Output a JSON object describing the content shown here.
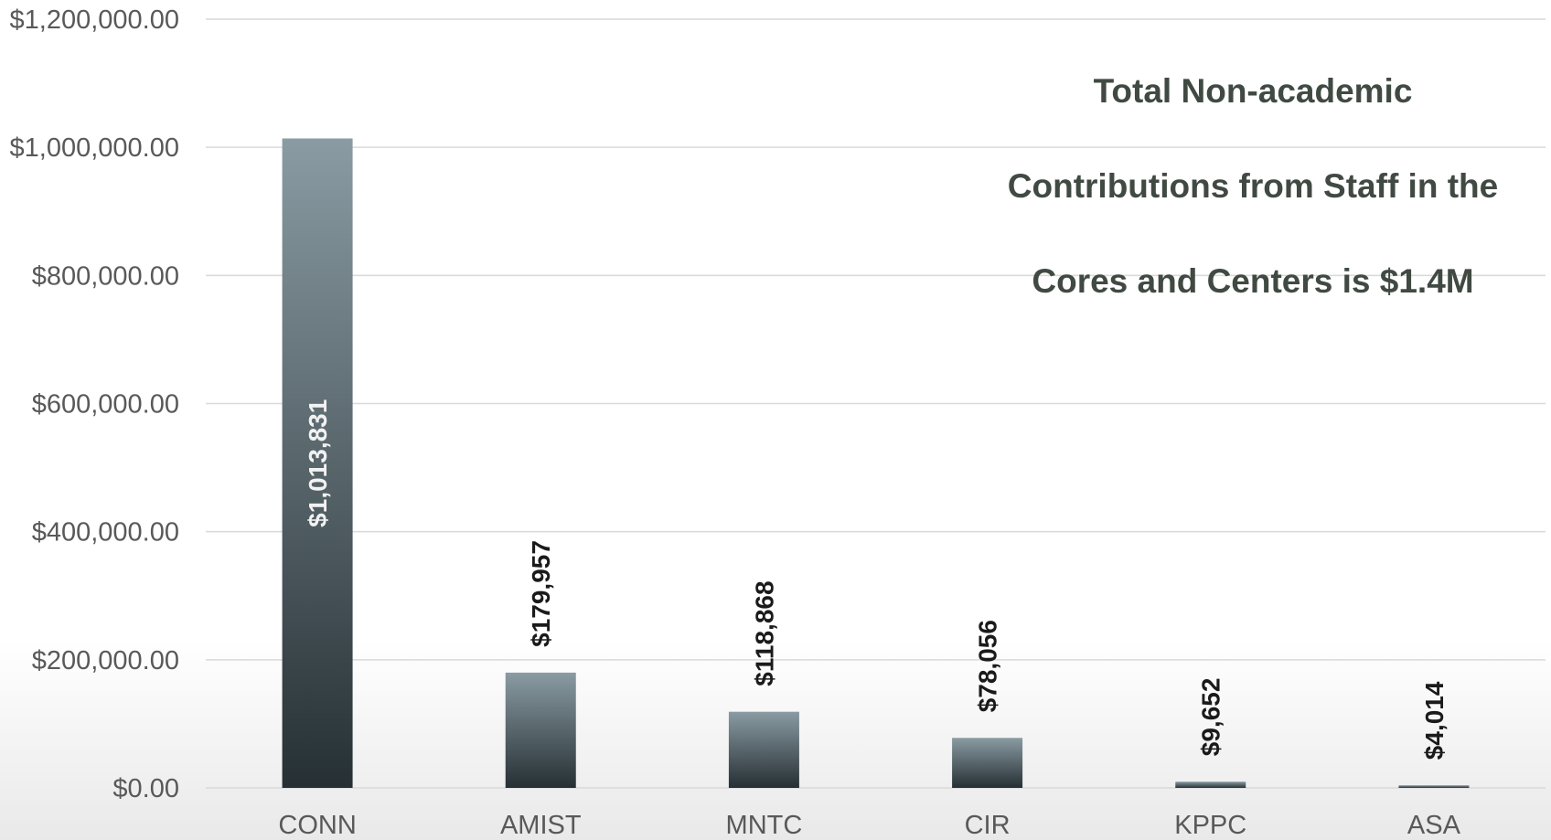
{
  "chart_data": {
    "type": "bar",
    "title": "Total Non-academic Contributions from Staff in the Cores and Centers is $1.4M",
    "title_lines": [
      "Total Non-academic",
      "Contributions from Staff in the",
      "Cores and Centers is $1.4M"
    ],
    "xlabel": "",
    "ylabel": "",
    "categories": [
      "CONN",
      "AMIST",
      "MNTC",
      "CIR",
      "KPPC",
      "ASA"
    ],
    "values": [
      1013831,
      179957,
      118868,
      78056,
      9652,
      4014
    ],
    "data_labels": [
      "$1,013,831",
      "$179,957",
      "$118,868",
      "$78,056",
      "$9,652",
      "$4,014"
    ],
    "ylim": [
      0,
      1200000
    ],
    "yticks": [
      0,
      200000,
      400000,
      600000,
      800000,
      1000000,
      1200000
    ],
    "ytick_labels": [
      "$0.00",
      "$200,000.00",
      "$400,000.00",
      "$600,000.00",
      "$800,000.00",
      "$1,000,000.00",
      "$1,200,000.00"
    ],
    "grid": true,
    "legend": "none",
    "colors": {
      "bar_top": "#8a9ba3",
      "bar_bottom": "#263034",
      "grid": "#d9d9d9",
      "axis_text": "#595959",
      "title": "#404a42"
    }
  }
}
